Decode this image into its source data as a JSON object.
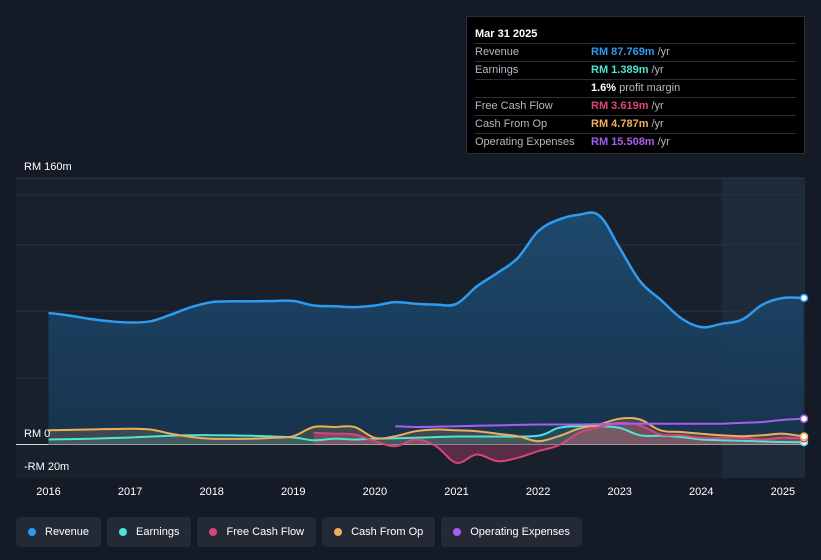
{
  "tooltip": {
    "date": "Mar 31 2025",
    "rows": [
      {
        "label": "Revenue",
        "value": "RM 87.769m",
        "unit": "/yr",
        "color": "#2e9bf0"
      },
      {
        "label": "Earnings",
        "value": "RM 1.389m",
        "unit": "/yr",
        "color": "#4de4d4"
      },
      {
        "label": "",
        "value": "1.6%",
        "unit": "profit margin",
        "color": "#ffffff"
      },
      {
        "label": "Free Cash Flow",
        "value": "RM 3.619m",
        "unit": "/yr",
        "color": "#d9457a"
      },
      {
        "label": "Cash From Op",
        "value": "RM 4.787m",
        "unit": "/yr",
        "color": "#f0ad5a"
      },
      {
        "label": "Operating Expenses",
        "value": "RM 15.508m",
        "unit": "/yr",
        "color": "#a75cf2"
      }
    ]
  },
  "legend": [
    {
      "label": "Revenue",
      "color": "#2e9bf0"
    },
    {
      "label": "Earnings",
      "color": "#4de4d4"
    },
    {
      "label": "Free Cash Flow",
      "color": "#d9457a"
    },
    {
      "label": "Cash From Op",
      "color": "#f0ad5a"
    },
    {
      "label": "Operating Expenses",
      "color": "#a75cf2"
    }
  ],
  "chart_data": {
    "type": "area",
    "y_unit_labels": {
      "top": "RM 160m",
      "zero": "RM 0",
      "bottom": "-RM 20m"
    },
    "ylim": [
      -20,
      160
    ],
    "xlim": [
      2016.0,
      2025.25
    ],
    "x_tick_labels": [
      "2016",
      "2017",
      "2018",
      "2019",
      "2020",
      "2021",
      "2022",
      "2023",
      "2024",
      "2025"
    ],
    "x_ticks": [
      2016,
      2017,
      2018,
      2019,
      2020,
      2021,
      2022,
      2023,
      2024,
      2025
    ],
    "forecast_start": 2024.25,
    "grid": true,
    "legend_placement": "bottom-left",
    "series": [
      {
        "name": "Revenue",
        "color": "#2e9bf0",
        "fill": true,
        "points": [
          [
            2016.0,
            79
          ],
          [
            2016.25,
            77.5
          ],
          [
            2016.5,
            75.5
          ],
          [
            2016.75,
            74
          ],
          [
            2017.0,
            73.3
          ],
          [
            2017.25,
            74
          ],
          [
            2017.5,
            78
          ],
          [
            2017.75,
            82.5
          ],
          [
            2018.0,
            85.5
          ],
          [
            2018.25,
            86
          ],
          [
            2018.5,
            86
          ],
          [
            2018.75,
            86.2
          ],
          [
            2019.0,
            86.2
          ],
          [
            2019.25,
            83.5
          ],
          [
            2019.5,
            83
          ],
          [
            2019.75,
            82.5
          ],
          [
            2020.0,
            83.5
          ],
          [
            2020.25,
            85.5
          ],
          [
            2020.5,
            84.5
          ],
          [
            2020.75,
            84
          ],
          [
            2021.0,
            84.5
          ],
          [
            2021.25,
            95
          ],
          [
            2021.5,
            103
          ],
          [
            2021.75,
            112
          ],
          [
            2022.0,
            128
          ],
          [
            2022.25,
            135
          ],
          [
            2022.5,
            138
          ],
          [
            2022.75,
            137.5
          ],
          [
            2023.0,
            118
          ],
          [
            2023.25,
            98
          ],
          [
            2023.5,
            87
          ],
          [
            2023.75,
            76
          ],
          [
            2024.0,
            70.5
          ],
          [
            2024.25,
            72.5
          ],
          [
            2024.5,
            75
          ],
          [
            2024.75,
            84
          ],
          [
            2025.0,
            88
          ],
          [
            2025.25,
            88
          ]
        ]
      },
      {
        "name": "Earnings",
        "color": "#4de4d4",
        "fill": true,
        "points": [
          [
            2016.0,
            3
          ],
          [
            2016.5,
            3.5
          ],
          [
            2017.0,
            4.2
          ],
          [
            2017.5,
            5.3
          ],
          [
            2018.0,
            5.6
          ],
          [
            2018.5,
            5.2
          ],
          [
            2019.0,
            4.2
          ],
          [
            2019.25,
            2.5
          ],
          [
            2019.5,
            3.5
          ],
          [
            2019.75,
            3
          ],
          [
            2020.0,
            3.5
          ],
          [
            2020.5,
            4
          ],
          [
            2021.0,
            4.8
          ],
          [
            2021.5,
            4.8
          ],
          [
            2022.0,
            5.2
          ],
          [
            2022.25,
            10
          ],
          [
            2022.5,
            11
          ],
          [
            2022.75,
            11
          ],
          [
            2023.0,
            10
          ],
          [
            2023.25,
            5.5
          ],
          [
            2023.5,
            5.2
          ],
          [
            2023.75,
            4.5
          ],
          [
            2024.0,
            3
          ],
          [
            2024.25,
            2.5
          ],
          [
            2024.5,
            2.2
          ],
          [
            2024.75,
            1.8
          ],
          [
            2025.0,
            1.5
          ],
          [
            2025.25,
            1.4
          ]
        ]
      },
      {
        "name": "Free Cash Flow",
        "color": "#d9457a",
        "fill": true,
        "points": [
          [
            2019.25,
            7
          ],
          [
            2019.5,
            6.5
          ],
          [
            2019.75,
            6
          ],
          [
            2020.0,
            2
          ],
          [
            2020.25,
            -1
          ],
          [
            2020.5,
            3
          ],
          [
            2020.75,
            -1
          ],
          [
            2021.0,
            -11
          ],
          [
            2021.25,
            -6
          ],
          [
            2021.5,
            -10
          ],
          [
            2021.75,
            -8
          ],
          [
            2022.0,
            -4
          ],
          [
            2022.25,
            -0.5
          ],
          [
            2022.5,
            7
          ],
          [
            2022.75,
            10.5
          ],
          [
            2023.0,
            13
          ],
          [
            2023.25,
            11.5
          ],
          [
            2023.5,
            6
          ],
          [
            2023.75,
            5.5
          ],
          [
            2024.0,
            4
          ],
          [
            2024.25,
            4
          ],
          [
            2024.5,
            4
          ],
          [
            2024.75,
            3
          ],
          [
            2025.0,
            4
          ],
          [
            2025.25,
            3.6
          ]
        ]
      },
      {
        "name": "Cash From Op",
        "color": "#f0ad5a",
        "fill": true,
        "points": [
          [
            2016.0,
            8.5
          ],
          [
            2016.5,
            9
          ],
          [
            2017.0,
            9.5
          ],
          [
            2017.25,
            9
          ],
          [
            2017.5,
            6.5
          ],
          [
            2017.75,
            4.5
          ],
          [
            2018.0,
            3.5
          ],
          [
            2018.5,
            3.5
          ],
          [
            2018.75,
            4
          ],
          [
            2019.0,
            5
          ],
          [
            2019.25,
            10.5
          ],
          [
            2019.5,
            10.5
          ],
          [
            2019.75,
            10.5
          ],
          [
            2020.0,
            4
          ],
          [
            2020.25,
            5
          ],
          [
            2020.5,
            8
          ],
          [
            2020.75,
            9
          ],
          [
            2021.0,
            8.5
          ],
          [
            2021.25,
            8
          ],
          [
            2021.5,
            6.5
          ],
          [
            2021.75,
            5
          ],
          [
            2022.0,
            2
          ],
          [
            2022.25,
            5
          ],
          [
            2022.5,
            9.5
          ],
          [
            2022.75,
            12
          ],
          [
            2023.0,
            15.5
          ],
          [
            2023.25,
            15
          ],
          [
            2023.5,
            8.5
          ],
          [
            2023.75,
            7.5
          ],
          [
            2024.0,
            6.5
          ],
          [
            2024.25,
            5.5
          ],
          [
            2024.5,
            5
          ],
          [
            2024.75,
            5.5
          ],
          [
            2025.0,
            6.5
          ],
          [
            2025.25,
            4.8
          ]
        ]
      },
      {
        "name": "Operating Expenses",
        "color": "#a75cf2",
        "fill": false,
        "points": [
          [
            2020.25,
            11
          ],
          [
            2020.5,
            10.5
          ],
          [
            2021.0,
            11
          ],
          [
            2021.5,
            11.5
          ],
          [
            2022.0,
            12
          ],
          [
            2022.5,
            12
          ],
          [
            2023.0,
            12.5
          ],
          [
            2023.5,
            12.5
          ],
          [
            2024.0,
            12.5
          ],
          [
            2024.25,
            12.5
          ],
          [
            2024.5,
            13
          ],
          [
            2024.75,
            13.5
          ],
          [
            2025.0,
            14.8
          ],
          [
            2025.25,
            15.5
          ]
        ]
      }
    ]
  }
}
